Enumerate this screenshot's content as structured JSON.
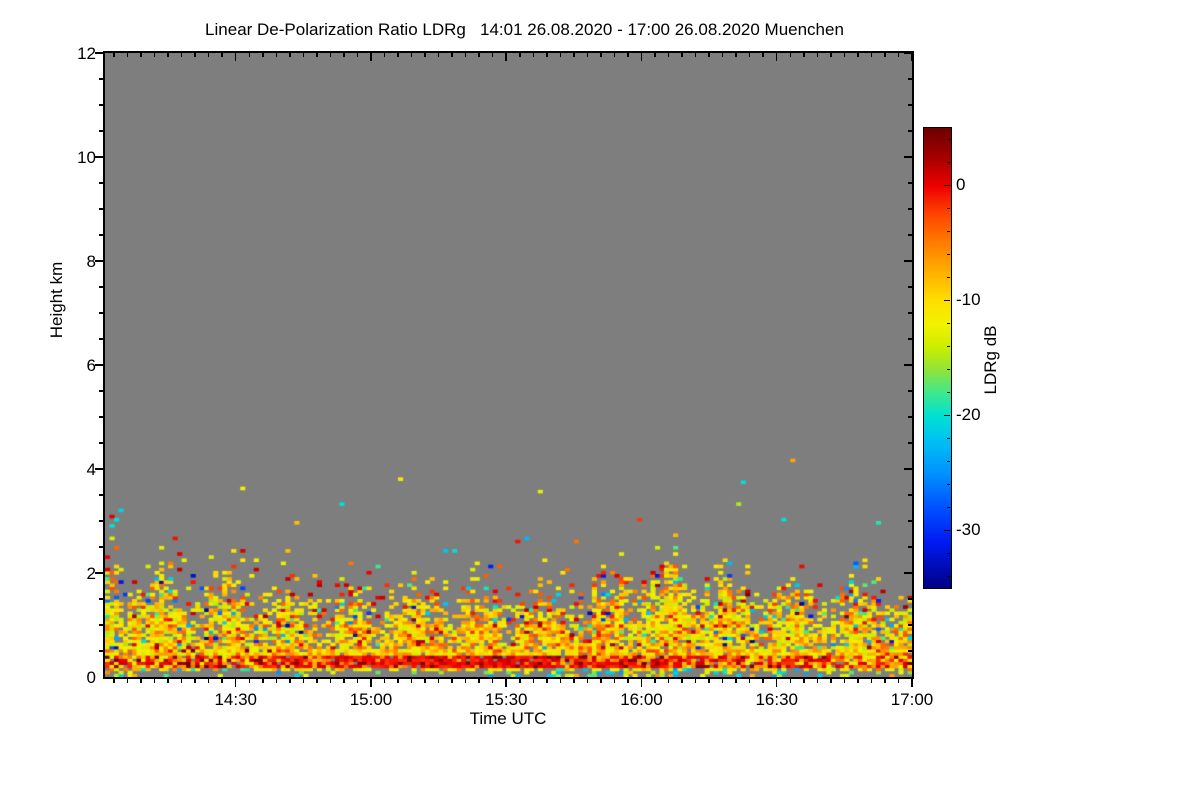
{
  "title": "Linear De-Polarization Ratio LDRg   14:01 26.08.2020 - 17:00 26.08.2020 Muenchen",
  "chart_data": {
    "type": "heatmap",
    "title": "Linear De-Polarization Ratio LDRg   14:01 26.08.2020 - 17:00 26.08.2020 Muenchen",
    "xlabel": "Time UTC",
    "ylabel": "Height km",
    "x_start": "14:01",
    "x_end": "17:00",
    "x_total_minutes": 179,
    "x_ticks": [
      {
        "label": "14:30",
        "minute": 29
      },
      {
        "label": "15:00",
        "minute": 59
      },
      {
        "label": "15:30",
        "minute": 89
      },
      {
        "label": "16:00",
        "minute": 119
      },
      {
        "label": "16:30",
        "minute": 149
      },
      {
        "label": "17:00",
        "minute": 179
      }
    ],
    "x_minor_step_min": 3,
    "y_range_km": [
      0,
      12
    ],
    "y_ticks": [
      0,
      2,
      4,
      6,
      8,
      10,
      12
    ],
    "y_minor_step_km": 0.5,
    "grid": false,
    "background_color": "#7e7e7e",
    "colorbar": {
      "label": "LDRg dB",
      "position": "right",
      "value_top": 5,
      "value_bottom": -35,
      "ticks": [
        0,
        -10,
        -20,
        -30
      ],
      "minor_step_db": 2,
      "stops": [
        [
          5,
          "#6e0000"
        ],
        [
          2.5,
          "#a40000"
        ],
        [
          0,
          "#ee0000"
        ],
        [
          -2.5,
          "#ff4600"
        ],
        [
          -5,
          "#ff7e00"
        ],
        [
          -7.5,
          "#ffb000"
        ],
        [
          -10,
          "#ffdf00"
        ],
        [
          -12,
          "#f2f200"
        ],
        [
          -14,
          "#cdee00"
        ],
        [
          -16,
          "#8fe43a"
        ],
        [
          -18,
          "#3fe88e"
        ],
        [
          -20,
          "#00e2d2"
        ],
        [
          -22,
          "#00c3f2"
        ],
        [
          -25,
          "#0092ff"
        ],
        [
          -28,
          "#0051ff"
        ],
        [
          -31,
          "#001af2"
        ],
        [
          -35,
          "#000082"
        ]
      ]
    },
    "field": {
      "description": "Aerosol/boundary-layer depolarization speckle field below ~4 km; dense yellow-green mixing layer below ~1.2-2 km, decaying colored speckles to ~2.0-2.6 km, red-orange streak band near 0.2-0.45 km, thin gray no-data strip at surface, rare isolated dots up to ~4.2 km.",
      "seed": 20200826,
      "time_bins": 179,
      "gate_km": 0.06,
      "max_height_km": 4.32,
      "control_step_min": 10,
      "dense_top_km": [
        1.55,
        1.65,
        1.6,
        1.5,
        1.45,
        1.25,
        1.3,
        1.45,
        1.35,
        1.2,
        1.3,
        1.55,
        1.8,
        1.95,
        1.6,
        1.45,
        1.5,
        1.4,
        1.45
      ],
      "speckle_top_km": [
        2.45,
        2.6,
        2.5,
        2.4,
        2.35,
        2.1,
        2.15,
        2.2,
        2.1,
        2.0,
        2.1,
        2.25,
        2.35,
        2.4,
        2.25,
        2.1,
        2.15,
        2.1,
        2.1
      ],
      "orange_mix": [
        0.35,
        0.3,
        0.35,
        0.4,
        0.45,
        0.55,
        0.7,
        0.75,
        0.7,
        0.75,
        0.7,
        0.6,
        0.45,
        0.4,
        0.5,
        0.55,
        0.5,
        0.45,
        0.4
      ],
      "cyan_mix": [
        0.5,
        0.4,
        0.35,
        0.3,
        0.3,
        0.3,
        0.35,
        0.3,
        0.35,
        0.3,
        0.35,
        0.4,
        0.5,
        0.6,
        0.55,
        0.6,
        0.65,
        0.7,
        0.75
      ],
      "red_band_strength": [
        0.35,
        0.4,
        0.4,
        0.45,
        0.5,
        0.6,
        0.75,
        0.8,
        0.85,
        0.85,
        0.8,
        0.7,
        0.6,
        0.5,
        0.45,
        0.45,
        0.4,
        0.4,
        0.35
      ],
      "surface_gray_top_km": 0.1,
      "red_band_km": [
        0.155,
        0.42
      ],
      "low_band_km": [
        0.42,
        0.52
      ],
      "outlier_prob": 0.0012
    },
    "edge_dots": [
      {
        "t": 1,
        "h": 3.08,
        "v": 0.5
      },
      {
        "t": 2,
        "h": 2.98,
        "v": -20
      },
      {
        "t": 1,
        "h": 2.88,
        "v": -20
      },
      {
        "t": 3,
        "h": 3.16,
        "v": -21
      },
      {
        "t": 1,
        "h": 2.62,
        "v": -13
      },
      {
        "t": 2,
        "h": 2.45,
        "v": -4
      },
      {
        "t": 65,
        "h": 3.78,
        "v": -11
      },
      {
        "t": 52,
        "h": 3.32,
        "v": -20
      },
      {
        "t": 96,
        "h": 3.52,
        "v": -13
      },
      {
        "t": 30,
        "h": 3.62,
        "v": -12
      },
      {
        "t": 118,
        "h": 3.02,
        "v": -2
      },
      {
        "t": 150,
        "h": 2.98,
        "v": -20
      },
      {
        "t": 171,
        "h": 2.92,
        "v": -19
      },
      {
        "t": 140,
        "h": 3.3,
        "v": -15
      }
    ]
  }
}
